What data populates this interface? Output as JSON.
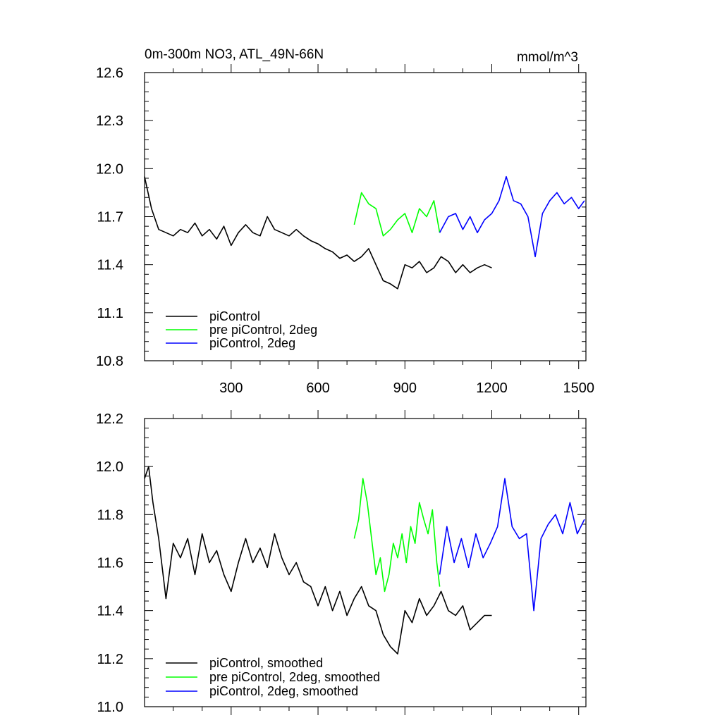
{
  "chart_data": [
    {
      "type": "line",
      "title": "0m-300m NO3, ATL_49N-66N",
      "units": "mmol/m^3",
      "xlabel": "",
      "ylabel": "",
      "xlim": [
        1,
        1525
      ],
      "ylim": [
        10.8,
        12.6
      ],
      "x_ticks": [
        300,
        600,
        900,
        1200,
        1500
      ],
      "x_tick_labels": [
        "300",
        "600",
        "900",
        "1200",
        "1500"
      ],
      "y_ticks": [
        10.8,
        11.1,
        11.4,
        11.7,
        12.0,
        12.3,
        12.6
      ],
      "y_tick_labels": [
        "10.8",
        "11.1",
        "11.4",
        "11.7",
        "12.0",
        "12.3",
        "12.6"
      ],
      "grid": false,
      "legend_position": "bottom-left",
      "series": [
        {
          "name": "piControl",
          "color": "#000000",
          "x": [
            1,
            25,
            50,
            75,
            100,
            125,
            150,
            175,
            200,
            225,
            250,
            275,
            300,
            325,
            350,
            375,
            400,
            425,
            450,
            475,
            500,
            525,
            550,
            575,
            600,
            625,
            650,
            675,
            700,
            725,
            750,
            775,
            800,
            825,
            850,
            875,
            900,
            925,
            950,
            975,
            1000,
            1025,
            1050,
            1075,
            1100,
            1125,
            1150,
            1175,
            1200
          ],
          "values": [
            11.95,
            11.75,
            11.62,
            11.6,
            11.58,
            11.62,
            11.6,
            11.66,
            11.58,
            11.62,
            11.56,
            11.64,
            11.52,
            11.6,
            11.65,
            11.6,
            11.58,
            11.7,
            11.62,
            11.6,
            11.58,
            11.62,
            11.58,
            11.55,
            11.53,
            11.5,
            11.48,
            11.44,
            11.46,
            11.42,
            11.45,
            11.5,
            11.4,
            11.3,
            11.28,
            11.25,
            11.4,
            11.38,
            11.42,
            11.35,
            11.38,
            11.45,
            11.42,
            11.35,
            11.4,
            11.35,
            11.38,
            11.4,
            11.38
          ]
        },
        {
          "name": "pre piControl, 2deg",
          "color": "#00ff00",
          "x": [
            725,
            750,
            775,
            800,
            825,
            850,
            875,
            900,
            925,
            950,
            975,
            1000,
            1020
          ],
          "values": [
            11.65,
            11.85,
            11.78,
            11.75,
            11.58,
            11.62,
            11.68,
            11.72,
            11.6,
            11.75,
            11.7,
            11.8,
            11.6
          ]
        },
        {
          "name": "piControl, 2deg",
          "color": "#0000ff",
          "x": [
            1020,
            1050,
            1075,
            1100,
            1125,
            1150,
            1175,
            1200,
            1225,
            1250,
            1275,
            1300,
            1325,
            1350,
            1375,
            1400,
            1425,
            1450,
            1475,
            1500,
            1520
          ],
          "values": [
            11.6,
            11.7,
            11.72,
            11.62,
            11.7,
            11.6,
            11.68,
            11.72,
            11.8,
            11.95,
            11.8,
            11.78,
            11.7,
            11.45,
            11.72,
            11.8,
            11.85,
            11.78,
            11.82,
            11.75,
            11.8
          ]
        }
      ]
    },
    {
      "type": "line",
      "title": "",
      "xlabel": "",
      "ylabel": "",
      "xlim": [
        1,
        1525
      ],
      "ylim": [
        11.0,
        12.2
      ],
      "x_ticks": [
        300,
        600,
        900,
        1200,
        1500
      ],
      "y_ticks": [
        11.0,
        11.2,
        11.4,
        11.6,
        11.8,
        12.0,
        12.2
      ],
      "y_tick_labels": [
        "11.0",
        "11.2",
        "11.4",
        "11.6",
        "11.8",
        "12.0",
        "12.2"
      ],
      "grid": false,
      "legend_position": "bottom-left",
      "series": [
        {
          "name": "piControl, smoothed",
          "color": "#000000",
          "x": [
            1,
            15,
            30,
            50,
            75,
            100,
            125,
            150,
            175,
            200,
            225,
            250,
            275,
            300,
            325,
            350,
            375,
            400,
            425,
            450,
            475,
            500,
            525,
            550,
            575,
            600,
            625,
            650,
            675,
            700,
            725,
            750,
            775,
            800,
            825,
            850,
            875,
            900,
            925,
            950,
            975,
            1000,
            1025,
            1050,
            1075,
            1100,
            1125,
            1150,
            1175,
            1200
          ],
          "values": [
            11.95,
            12.0,
            11.85,
            11.7,
            11.45,
            11.68,
            11.62,
            11.7,
            11.55,
            11.72,
            11.6,
            11.65,
            11.55,
            11.48,
            11.6,
            11.7,
            11.6,
            11.66,
            11.58,
            11.72,
            11.62,
            11.55,
            11.6,
            11.52,
            11.5,
            11.42,
            11.5,
            11.4,
            11.48,
            11.38,
            11.45,
            11.5,
            11.42,
            11.4,
            11.3,
            11.25,
            11.22,
            11.4,
            11.35,
            11.45,
            11.38,
            11.42,
            11.48,
            11.4,
            11.38,
            11.42,
            11.32,
            11.35,
            11.38,
            11.38
          ]
        },
        {
          "name": "pre piControl, 2deg, smoothed",
          "color": "#00ff00",
          "x": [
            725,
            740,
            755,
            770,
            785,
            800,
            815,
            830,
            845,
            860,
            875,
            890,
            905,
            920,
            935,
            950,
            965,
            980,
            995,
            1010,
            1020
          ],
          "values": [
            11.7,
            11.78,
            11.95,
            11.85,
            11.7,
            11.55,
            11.62,
            11.48,
            11.55,
            11.68,
            11.62,
            11.72,
            11.6,
            11.75,
            11.68,
            11.85,
            11.78,
            11.72,
            11.82,
            11.6,
            11.5
          ]
        },
        {
          "name": "piControl, 2deg, smoothed",
          "color": "#0000ff",
          "x": [
            1020,
            1045,
            1070,
            1095,
            1120,
            1145,
            1170,
            1195,
            1220,
            1245,
            1270,
            1295,
            1320,
            1345,
            1370,
            1395,
            1420,
            1445,
            1470,
            1495,
            1520
          ],
          "values": [
            11.55,
            11.75,
            11.6,
            11.7,
            11.58,
            11.72,
            11.62,
            11.68,
            11.75,
            11.95,
            11.75,
            11.7,
            11.72,
            11.4,
            11.7,
            11.76,
            11.8,
            11.72,
            11.85,
            11.72,
            11.78
          ]
        }
      ]
    }
  ]
}
